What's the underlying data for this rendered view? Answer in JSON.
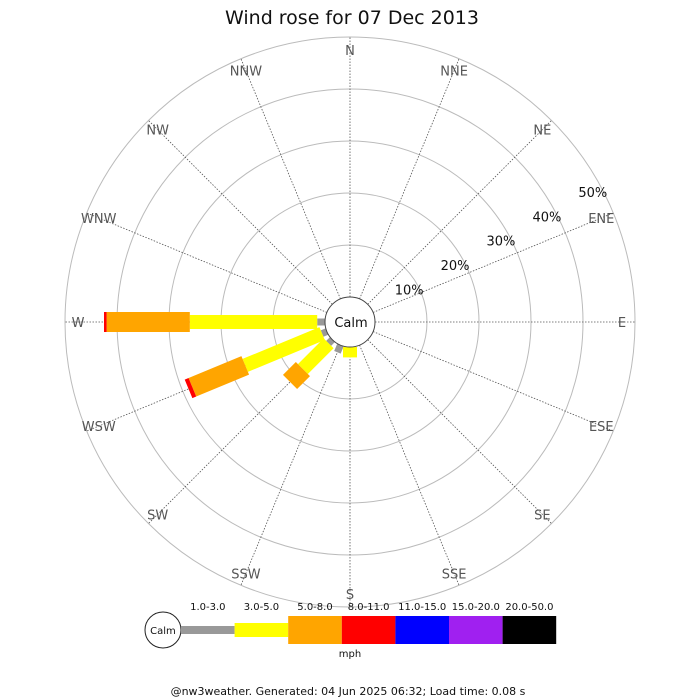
{
  "chart_data": {
    "type": "windrose",
    "title": "Wind rose for 07 Dec 2013",
    "directions": [
      "N",
      "NNE",
      "NE",
      "ENE",
      "E",
      "ESE",
      "SE",
      "SSE",
      "S",
      "SSW",
      "SW",
      "WSW",
      "W",
      "WNW",
      "NW",
      "NNW"
    ],
    "rings": [
      10,
      20,
      30,
      40,
      50
    ],
    "ring_labels": [
      "10%",
      "20%",
      "30%",
      "40%",
      "50%"
    ],
    "calm_label": "Calm",
    "speed_bins": [
      "1.0-3.0",
      "3.0-5.0",
      "5.0-8.0",
      "8.0-11.0",
      "11.0-15.0",
      "15.0-20.0",
      "20.0-50.0"
    ],
    "colors": [
      "#999999",
      "#ffff00",
      "#ffa500",
      "#ff0000",
      "#0000ff",
      "#a020f0",
      "#000000"
    ],
    "unit": "mph",
    "series": [
      {
        "direction": "W",
        "values": [
          1.5,
          24.5,
          16.0,
          0.5,
          0,
          0,
          0
        ]
      },
      {
        "direction": "WSW",
        "values": [
          1.0,
          16.0,
          11.0,
          0.8,
          0,
          0,
          0
        ]
      },
      {
        "direction": "SW",
        "values": [
          1.0,
          7.0,
          3.5,
          0,
          0,
          0,
          0
        ]
      },
      {
        "direction": "SSW",
        "values": [
          1.5,
          0,
          0,
          0,
          0,
          0,
          0
        ]
      },
      {
        "direction": "S",
        "values": [
          0,
          2.0,
          0,
          0,
          0,
          0,
          0
        ]
      }
    ]
  },
  "footer": "@nw3weather. Generated: 04 Jun 2025 06:32; Load time: 0.08 s"
}
